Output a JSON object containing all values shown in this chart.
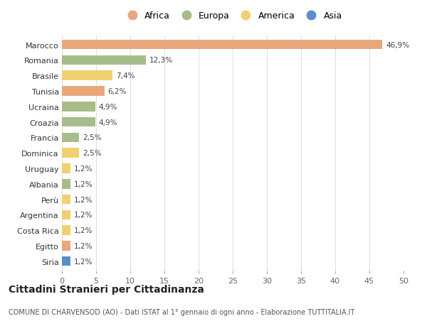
{
  "countries": [
    "Marocco",
    "Romania",
    "Brasile",
    "Tunisia",
    "Ucraina",
    "Croazia",
    "Francia",
    "Dominica",
    "Uruguay",
    "Albania",
    "Perù",
    "Argentina",
    "Costa Rica",
    "Egitto",
    "Siria"
  ],
  "values": [
    46.9,
    12.3,
    7.4,
    6.2,
    4.9,
    4.9,
    2.5,
    2.5,
    1.2,
    1.2,
    1.2,
    1.2,
    1.2,
    1.2,
    1.2
  ],
  "labels": [
    "46,9%",
    "12,3%",
    "7,4%",
    "6,2%",
    "4,9%",
    "4,9%",
    "2,5%",
    "2,5%",
    "1,2%",
    "1,2%",
    "1,2%",
    "1,2%",
    "1,2%",
    "1,2%",
    "1,2%"
  ],
  "continents": [
    "Africa",
    "Europa",
    "America",
    "Africa",
    "Europa",
    "Europa",
    "Europa",
    "America",
    "America",
    "Europa",
    "America",
    "America",
    "America",
    "Africa",
    "Asia"
  ],
  "colors": {
    "Africa": "#E8A87C",
    "Europa": "#A8BC8A",
    "America": "#F0D070",
    "Asia": "#5B8EC5"
  },
  "legend_items": [
    "Africa",
    "Europa",
    "America",
    "Asia"
  ],
  "legend_colors": [
    "#E8A87C",
    "#A8BC8A",
    "#F0D070",
    "#5B8EC5"
  ],
  "title": "Cittadini Stranieri per Cittadinanza",
  "subtitle": "COMUNE DI CHARVENSOD (AO) - Dati ISTAT al 1° gennaio di ogni anno - Elaborazione TUTTITALIA.IT",
  "xlim": [
    0,
    50
  ],
  "xticks": [
    0,
    5,
    10,
    15,
    20,
    25,
    30,
    35,
    40,
    45,
    50
  ],
  "bg_color": "#ffffff",
  "grid_color": "#e0e0e0"
}
